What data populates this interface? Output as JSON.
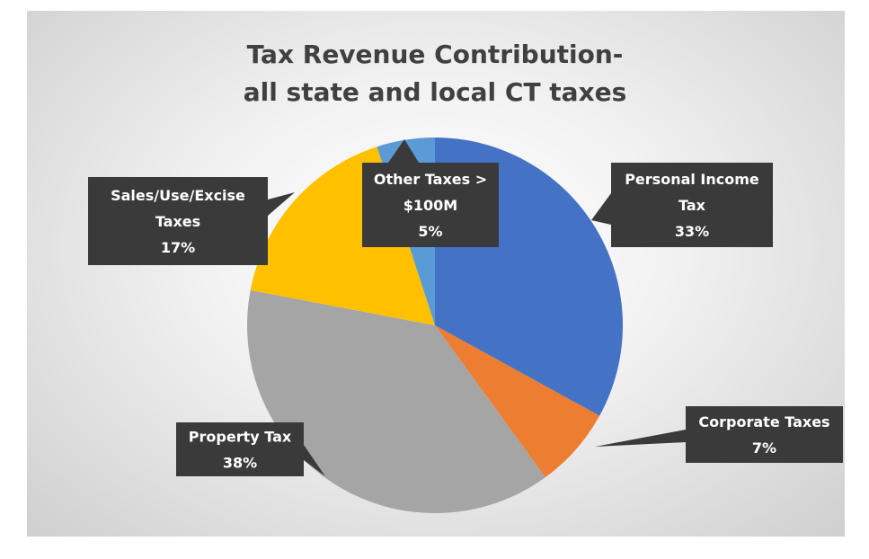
{
  "chart_data": {
    "type": "pie",
    "title": [
      "Tax Revenue Contribution-",
      "all state and local CT taxes"
    ],
    "start": "top, clockwise",
    "slices": [
      {
        "name": "Personal Income Tax",
        "label": [
          "Personal Income",
          "Tax"
        ],
        "value": 33,
        "value_label": "33%",
        "color": "#4472C4"
      },
      {
        "name": "Corporate Taxes",
        "label": [
          "Corporate Taxes"
        ],
        "value": 7,
        "value_label": "7%",
        "color": "#ED7D31"
      },
      {
        "name": "Property Tax",
        "label": [
          "Property Tax"
        ],
        "value": 38,
        "value_label": "38%",
        "color": "#A5A5A5"
      },
      {
        "name": "Sales/Use/Excise Taxes",
        "label": [
          "Sales/Use/Excise",
          "Taxes"
        ],
        "value": 17,
        "value_label": "17%",
        "color": "#FFC000"
      },
      {
        "name": "Other Taxes > $100M",
        "label": [
          "Other Taxes >",
          "$100M"
        ],
        "value": 5,
        "value_label": "5%",
        "color": "#5B9BD5"
      }
    ],
    "legend": "none",
    "data_labels": "callouts"
  }
}
